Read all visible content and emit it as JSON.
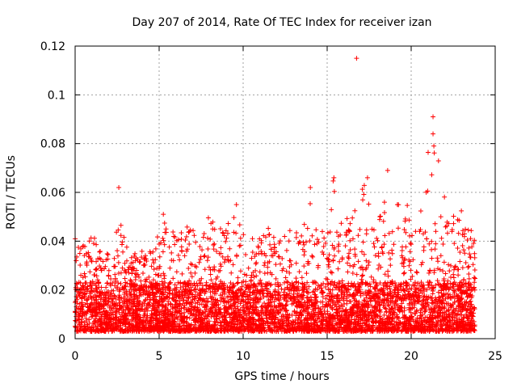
{
  "chart_data": {
    "type": "scatter",
    "title": "Day 207 of 2014, Rate Of TEC Index for receiver izan",
    "xlabel": "GPS time / hours",
    "ylabel": "ROTI / TECUs",
    "xlim": [
      0,
      25
    ],
    "ylim": [
      0,
      0.12
    ],
    "x_ticks": [
      "0",
      "5",
      "10",
      "15",
      "20",
      "25"
    ],
    "y_ticks": [
      "0",
      "0.02",
      "0.04",
      "0.06",
      "0.08",
      "0.1",
      "0.12"
    ],
    "grid": true,
    "marker": "+",
    "colors": {
      "points": "#ff0000"
    },
    "x_range_hours": [
      0,
      23.8
    ],
    "typical_band": [
      0.003,
      0.03
    ],
    "envelope": [
      {
        "x": 0.0,
        "y": 0.043
      },
      {
        "x": 0.4,
        "y": 0.038
      },
      {
        "x": 1.0,
        "y": 0.044
      },
      {
        "x": 1.6,
        "y": 0.034
      },
      {
        "x": 2.2,
        "y": 0.036
      },
      {
        "x": 2.6,
        "y": 0.062
      },
      {
        "x": 3.2,
        "y": 0.034
      },
      {
        "x": 4.0,
        "y": 0.036
      },
      {
        "x": 4.8,
        "y": 0.04
      },
      {
        "x": 5.2,
        "y": 0.052
      },
      {
        "x": 6.0,
        "y": 0.042
      },
      {
        "x": 6.8,
        "y": 0.048
      },
      {
        "x": 7.5,
        "y": 0.04
      },
      {
        "x": 8.0,
        "y": 0.052
      },
      {
        "x": 8.8,
        "y": 0.046
      },
      {
        "x": 9.6,
        "y": 0.055
      },
      {
        "x": 10.4,
        "y": 0.04
      },
      {
        "x": 11.2,
        "y": 0.046
      },
      {
        "x": 12.0,
        "y": 0.044
      },
      {
        "x": 12.6,
        "y": 0.046
      },
      {
        "x": 13.2,
        "y": 0.046
      },
      {
        "x": 14.0,
        "y": 0.062
      },
      {
        "x": 14.6,
        "y": 0.05
      },
      {
        "x": 15.4,
        "y": 0.066
      },
      {
        "x": 16.2,
        "y": 0.05
      },
      {
        "x": 17.4,
        "y": 0.066
      },
      {
        "x": 18.0,
        "y": 0.062
      },
      {
        "x": 18.6,
        "y": 0.069
      },
      {
        "x": 19.4,
        "y": 0.052
      },
      {
        "x": 20.4,
        "y": 0.06
      },
      {
        "x": 21.3,
        "y": 0.091
      },
      {
        "x": 22.0,
        "y": 0.058
      },
      {
        "x": 22.6,
        "y": 0.052
      },
      {
        "x": 23.4,
        "y": 0.055
      },
      {
        "x": 23.8,
        "y": 0.04
      }
    ],
    "notable_points": [
      {
        "x": 16.75,
        "y": 0.115
      },
      {
        "x": 21.3,
        "y": 0.091
      },
      {
        "x": 21.3,
        "y": 0.084
      },
      {
        "x": 21.35,
        "y": 0.079
      },
      {
        "x": 18.6,
        "y": 0.069
      },
      {
        "x": 15.4,
        "y": 0.066
      },
      {
        "x": 17.4,
        "y": 0.066
      },
      {
        "x": 2.6,
        "y": 0.062
      },
      {
        "x": 14.0,
        "y": 0.062
      },
      {
        "x": 9.6,
        "y": 0.055
      },
      {
        "x": 5.25,
        "y": 0.051
      }
    ]
  }
}
